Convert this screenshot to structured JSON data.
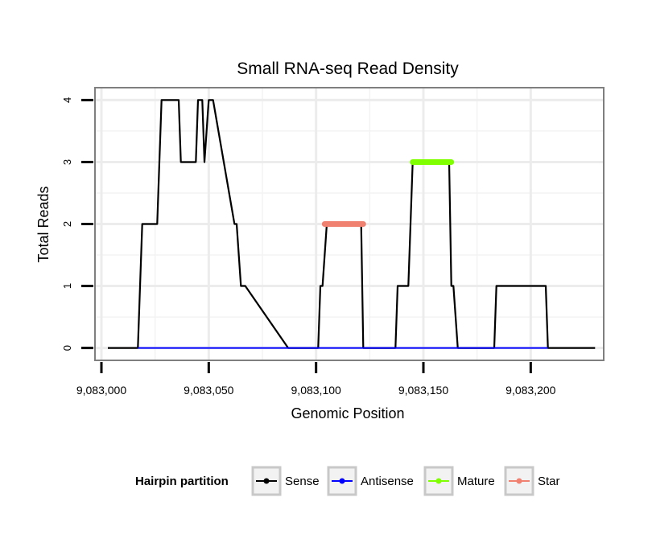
{
  "chart_data": {
    "type": "line",
    "title": "Small RNA-seq Read Density",
    "xlabel": "Genomic Position",
    "ylabel": "Total Reads",
    "xlim": [
      9082997,
      9083234
    ],
    "ylim": [
      -0.2,
      4.2
    ],
    "xticks": [
      9083000,
      9083050,
      9083100,
      9083150,
      9083200
    ],
    "xtick_labels": [
      "9,083,000",
      "9,083,050",
      "9,083,100",
      "9,083,150",
      "9,083,200"
    ],
    "yticks": [
      0,
      1,
      2,
      3,
      4
    ],
    "ytick_labels": [
      "0",
      "1",
      "2",
      "3",
      "4"
    ],
    "grid": true,
    "legend": {
      "title": "Hairpin partition",
      "position": "bottom",
      "entries": [
        "Sense",
        "Antisense",
        "Mature",
        "Star"
      ]
    },
    "series": [
      {
        "name": "Sense",
        "color": "#000000",
        "x": [
          9083003,
          9083017,
          9083019,
          9083026,
          9083028,
          9083036,
          9083037,
          9083044,
          9083045,
          9083047,
          9083048,
          9083050,
          9083052,
          9083062,
          9083063,
          9083065,
          9083067,
          9083087,
          9083101,
          9083102,
          9083103,
          9083105,
          9083121,
          9083122,
          9083137,
          9083138,
          9083143,
          9083145,
          9083162,
          9083163,
          9083164,
          9083166,
          9083183,
          9083184,
          9083207,
          9083208,
          9083230
        ],
        "y": [
          0,
          0,
          2,
          2,
          4,
          4,
          3,
          3,
          4,
          4,
          3,
          4,
          4,
          2,
          2,
          1,
          1,
          0,
          0,
          1,
          1,
          2,
          2,
          0,
          0,
          1,
          1,
          3,
          3,
          1,
          1,
          0,
          0,
          1,
          1,
          0,
          0
        ]
      },
      {
        "name": "Antisense",
        "color": "#0000ff",
        "x": [
          9083017,
          9083208
        ],
        "y": [
          0,
          0
        ]
      },
      {
        "name": "Mature",
        "color": "#7fff00",
        "x": [
          9083145,
          9083163
        ],
        "y": [
          3,
          3
        ]
      },
      {
        "name": "Star",
        "color": "#f08070",
        "x": [
          9083104,
          9083122
        ],
        "y": [
          2,
          2
        ]
      }
    ]
  }
}
